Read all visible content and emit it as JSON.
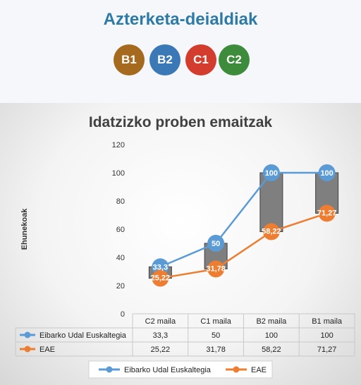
{
  "header": {
    "title": "Azterketa-deialdiak",
    "levels": [
      {
        "label": "B1",
        "color": "#a56a1e"
      },
      {
        "label": "B2",
        "color": "#3a78b6"
      },
      {
        "label": "C1",
        "color": "#d23d2d"
      },
      {
        "label": "C2",
        "color": "#3d8c3c"
      }
    ]
  },
  "chart_data": {
    "type": "line",
    "title": "Idatzizko proben emaitzak",
    "ylabel": "Ehunekoak",
    "xlabel": "",
    "ylim": [
      0,
      120
    ],
    "yticks": [
      "0",
      "20",
      "40",
      "60",
      "80",
      "100",
      "120"
    ],
    "categories": [
      "C2 maila",
      "C1 maila",
      "B2 maila",
      "B1 maila"
    ],
    "series": [
      {
        "name": "Eibarko Udal Euskaltegia",
        "values": [
          33.3,
          50,
          100,
          100
        ],
        "labels": [
          "33,3",
          "50",
          "100",
          "100"
        ],
        "color": "#5b9bd5"
      },
      {
        "name": "EAE",
        "values": [
          25.22,
          31.78,
          58.22,
          71.27
        ],
        "labels": [
          "25,22",
          "31,78",
          "58,22",
          "71,27"
        ],
        "color": "#ed7d31"
      }
    ],
    "grid": false,
    "high_low_bars": true,
    "data_table": true,
    "legend": "bottom"
  }
}
